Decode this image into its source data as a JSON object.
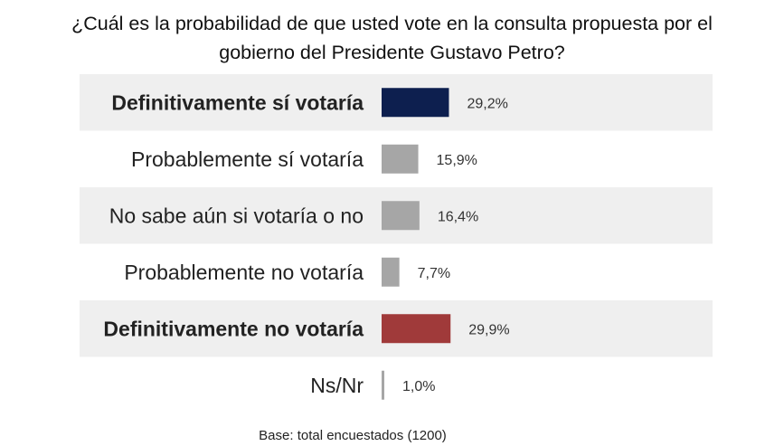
{
  "question": {
    "line1": "¿Cuál es la probabilidad de que usted vote en la consulta propuesta por el",
    "line2": "gobierno del Presidente Gustavo Petro?"
  },
  "chart_data": {
    "type": "bar",
    "orientation": "horizontal",
    "categories": [
      "Definitivamente sí votaría",
      "Probablemente sí votaría",
      "No sabe aún si votaría o no",
      "Probablemente no votaría",
      "Definitivamente no votaría",
      "Ns/Nr"
    ],
    "values": [
      29.2,
      15.9,
      16.4,
      7.7,
      29.9,
      1.0
    ],
    "value_labels": [
      "29,2%",
      "15,9%",
      "16,4%",
      "7,7%",
      "29,9%",
      "1,0%"
    ],
    "bar_colors": [
      "#0d1f4f",
      "#a6a6a6",
      "#a6a6a6",
      "#a6a6a6",
      "#a03a3a",
      "#a6a6a6"
    ],
    "label_colors": [
      "#132a5c",
      "#222222",
      "#222222",
      "#222222",
      "#9c3b3b",
      "#222222"
    ],
    "label_bold": [
      true,
      false,
      false,
      false,
      true,
      false
    ],
    "row_shading": [
      true,
      false,
      true,
      false,
      true,
      false
    ],
    "row_shade_color": "#efefef",
    "xlim": [
      0,
      100
    ],
    "grid": false,
    "legend": "none",
    "base_note": "Base: total encuestados (1200)"
  }
}
